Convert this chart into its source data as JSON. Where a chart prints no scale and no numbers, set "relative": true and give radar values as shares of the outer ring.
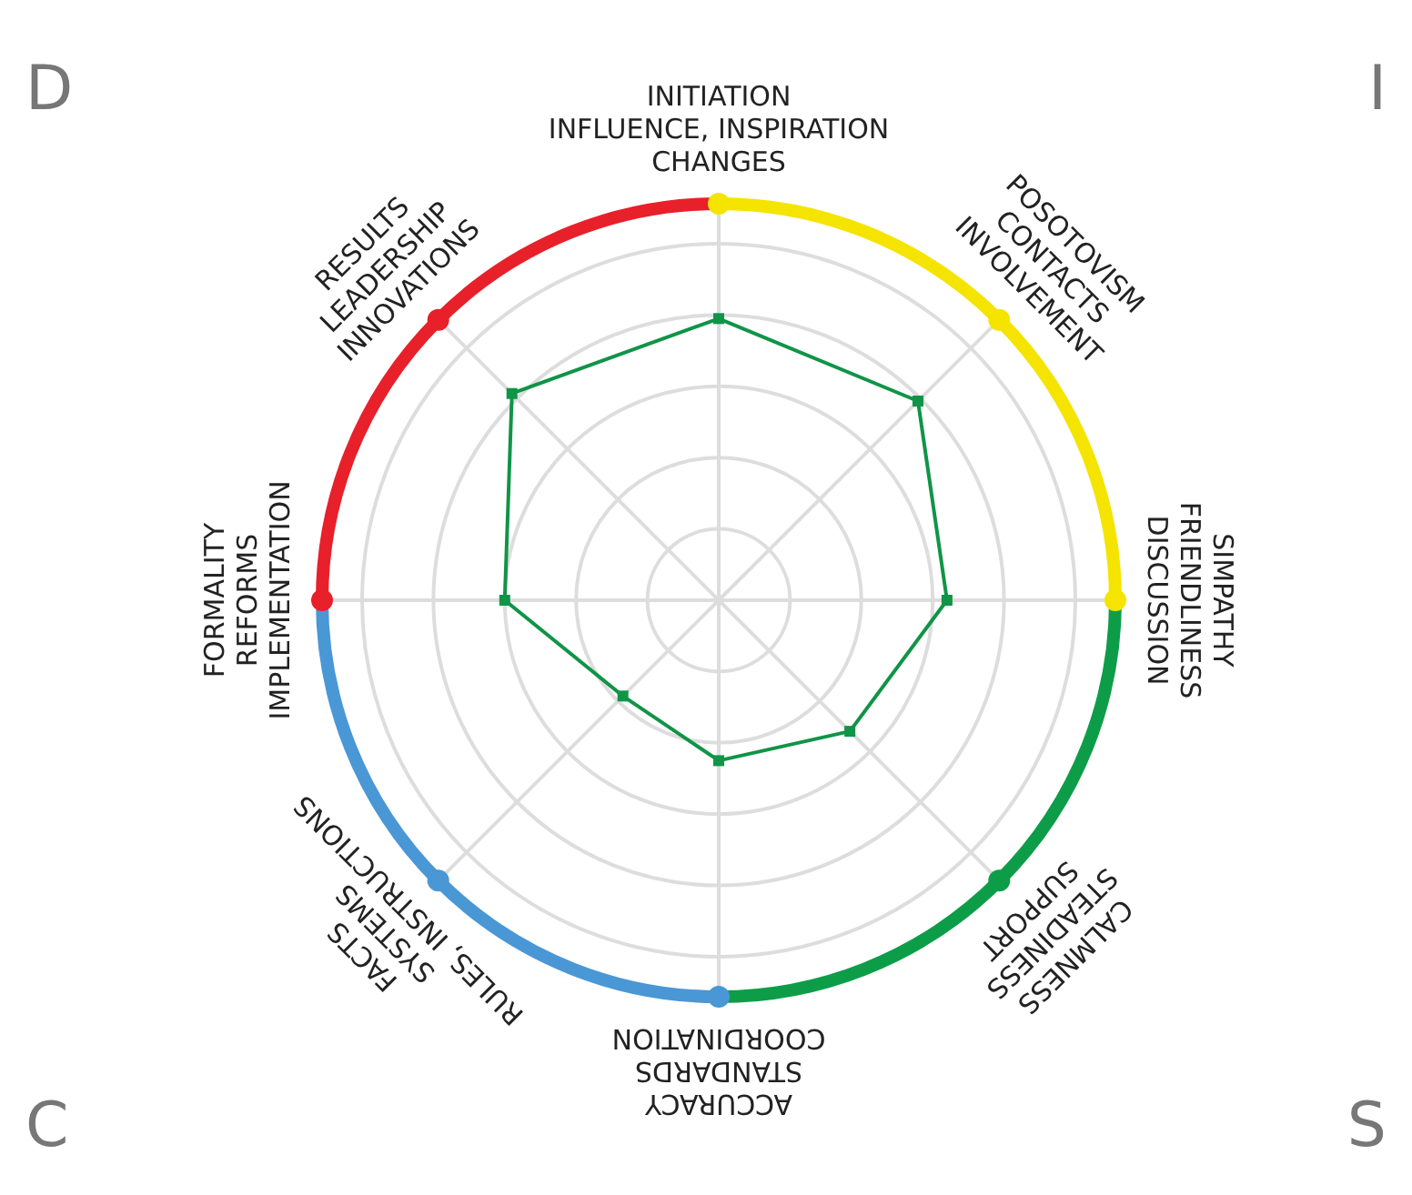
{
  "chart_data": {
    "type": "radar",
    "relative": true,
    "grid": true,
    "marker": "square",
    "categories": [
      "INITIATION\nINFLUENCE, INSPIRATION\nCHANGES",
      "POSOTOVISM\nCONTACTS\nINVOLVEMENT",
      "SIMPATHY\nFRIENDLINESS\nDISCUSSION",
      "CALMNESS\nSTEADINESS\nSUPPORT",
      "ACCURACY\nSTANDARDS\nCOORDINATION",
      "FACTS\nSYSTEMS\nRULES, INSTRUCTIONS",
      "FORMALITY\nREFORMS\nIMPLEMENTATION",
      "RESULTS\nLEADERSHIP\nINNOVATIONS"
    ],
    "series": [
      {
        "color": "#109447",
        "values": [
          0.79,
          0.79,
          0.64,
          0.52,
          0.45,
          0.38,
          0.6,
          0.82
        ]
      }
    ],
    "annotations": [
      "D",
      "I",
      "C",
      "S"
    ]
  }
}
